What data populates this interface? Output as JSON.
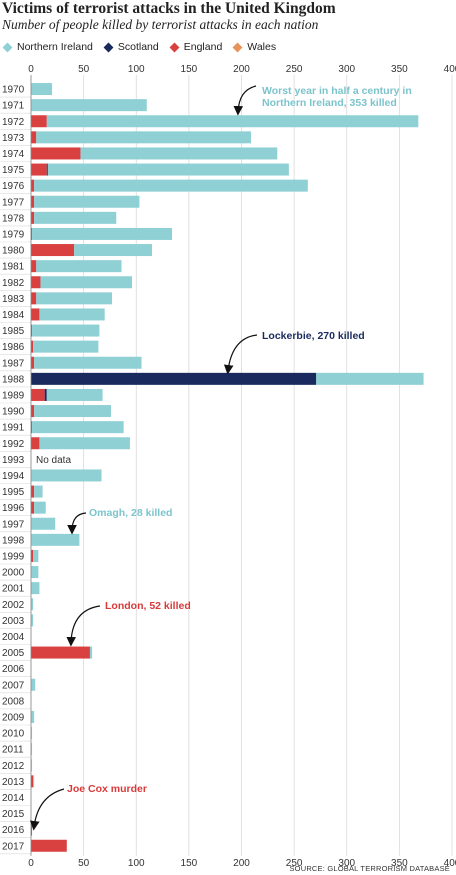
{
  "title": "Victims of terrorist attacks in the United Kingdom",
  "subtitle": "Number of people killed by terrorist attacks in each nation",
  "source": "SOURCE: GLOBAL TERRORISM DATABASE",
  "colors": {
    "Northern Ireland": "#8fd0d5",
    "Scotland": "#1a2a5e",
    "England": "#d94040",
    "Wales": "#e8935a",
    "grid": "#d9d9d9",
    "annotation_teal": "#7cc4cc",
    "annotation_navy": "#1a2a5e",
    "annotation_red": "#d93a3a"
  },
  "legend": [
    "Northern Ireland",
    "Scotland",
    "England",
    "Wales"
  ],
  "chart_data": {
    "type": "bar",
    "orientation": "horizontal",
    "stacked": true,
    "xlim": [
      0,
      400
    ],
    "x_ticks": [
      0,
      50,
      100,
      150,
      200,
      250,
      300,
      350,
      400
    ],
    "grid": true,
    "legend_position": "top-left",
    "categories": [
      "1970",
      "1971",
      "1972",
      "1973",
      "1974",
      "1975",
      "1976",
      "1977",
      "1978",
      "1979",
      "1980",
      "1981",
      "1982",
      "1983",
      "1984",
      "1985",
      "1986",
      "1987",
      "1988",
      "1989",
      "1990",
      "1991",
      "1992",
      "1993",
      "1994",
      "1995",
      "1996",
      "1997",
      "1998",
      "1999",
      "2000",
      "2001",
      "2002",
      "2003",
      "2004",
      "2005",
      "2006",
      "2007",
      "2008",
      "2009",
      "2010",
      "2011",
      "2012",
      "2013",
      "2014",
      "2015",
      "2016",
      "2017"
    ],
    "series": [
      {
        "name": "England",
        "values": [
          0,
          0,
          15,
          5,
          47,
          15,
          3,
          3,
          3,
          1,
          41,
          5,
          9,
          5,
          8,
          1,
          2,
          3,
          0,
          13,
          3,
          1,
          8,
          0,
          0,
          3,
          3,
          0,
          0,
          2,
          0,
          0,
          0,
          0,
          0,
          56,
          0,
          0,
          0,
          0,
          0,
          0,
          0,
          2,
          0,
          0,
          1,
          34
        ]
      },
      {
        "name": "Scotland",
        "values": [
          0,
          0,
          0,
          0,
          0,
          1,
          0,
          0,
          0,
          0,
          0,
          0,
          0,
          0,
          0,
          0,
          0,
          0,
          271,
          2,
          0,
          0,
          0,
          0,
          0,
          0,
          0,
          0,
          0,
          0,
          0,
          0,
          0,
          0,
          0,
          0,
          0,
          0,
          0,
          0,
          0,
          0,
          0,
          0,
          0,
          0,
          0,
          0
        ]
      },
      {
        "name": "Wales",
        "values": [
          0,
          0,
          0,
          0,
          0,
          0,
          0,
          0,
          0,
          0,
          0,
          0,
          0,
          0,
          0,
          0,
          0,
          0,
          0,
          0,
          0,
          0,
          0,
          0,
          0,
          0,
          0,
          0,
          0,
          0,
          0,
          0,
          0,
          0,
          0,
          0,
          0,
          0,
          0,
          0,
          0,
          0,
          0,
          0,
          0,
          0,
          0,
          0
        ]
      },
      {
        "name": "Northern Ireland",
        "values": [
          20,
          110,
          353,
          204,
          187,
          229,
          260,
          100,
          78,
          133,
          74,
          81,
          87,
          72,
          62,
          64,
          62,
          102,
          102,
          53,
          73,
          87,
          86,
          0,
          67,
          8,
          11,
          23,
          46,
          5,
          7,
          8,
          2,
          2,
          0,
          2,
          0,
          4,
          0,
          3,
          1,
          1,
          1,
          1,
          0,
          0,
          0,
          0
        ]
      }
    ],
    "no_data_label": "No data",
    "no_data_year": "1993",
    "annotations": [
      {
        "text": [
          "Worst year in half a century in",
          "Northern Ireland, 353 killed"
        ],
        "year": "1972",
        "color_key": "annotation_teal"
      },
      {
        "text": [
          "Lockerbie, 270 killed"
        ],
        "year": "1988",
        "color_key": "annotation_navy"
      },
      {
        "text": [
          "Omagh, 28 killed"
        ],
        "year": "1998",
        "color_key": "annotation_teal"
      },
      {
        "text": [
          "London, 52 killed"
        ],
        "year": "2005",
        "color_key": "annotation_red"
      },
      {
        "text": [
          "Joe Cox murder"
        ],
        "year": "2016",
        "color_key": "annotation_red"
      }
    ]
  }
}
